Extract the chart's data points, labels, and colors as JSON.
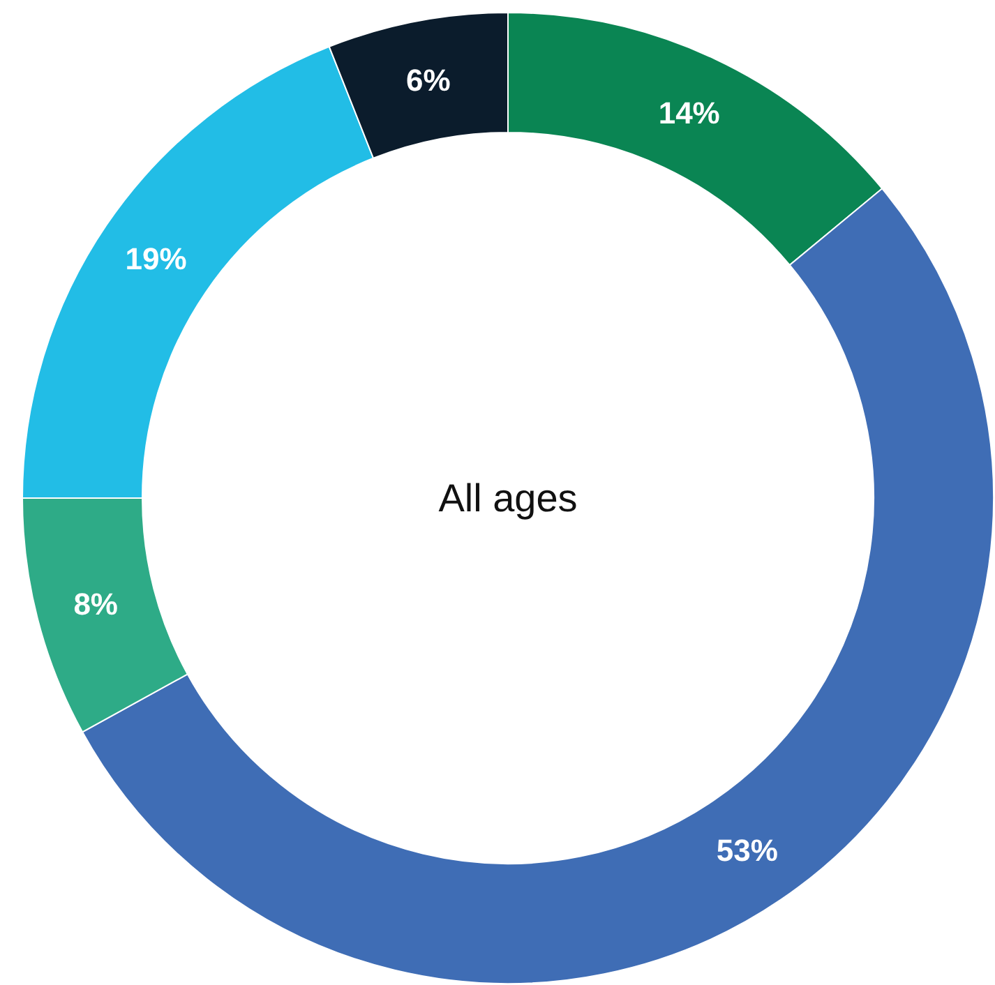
{
  "chart_data": {
    "type": "donut",
    "title": "All ages",
    "categories": [
      null,
      null,
      null,
      null,
      null
    ],
    "values": [
      14,
      53,
      8,
      19,
      6
    ],
    "colors": [
      "#0a8553",
      "#3f6db5",
      "#2eab87",
      "#22bde6",
      "#0b1c2c"
    ],
    "value_labels": [
      "14%",
      "53%",
      "8%",
      "19%",
      "6%"
    ]
  }
}
